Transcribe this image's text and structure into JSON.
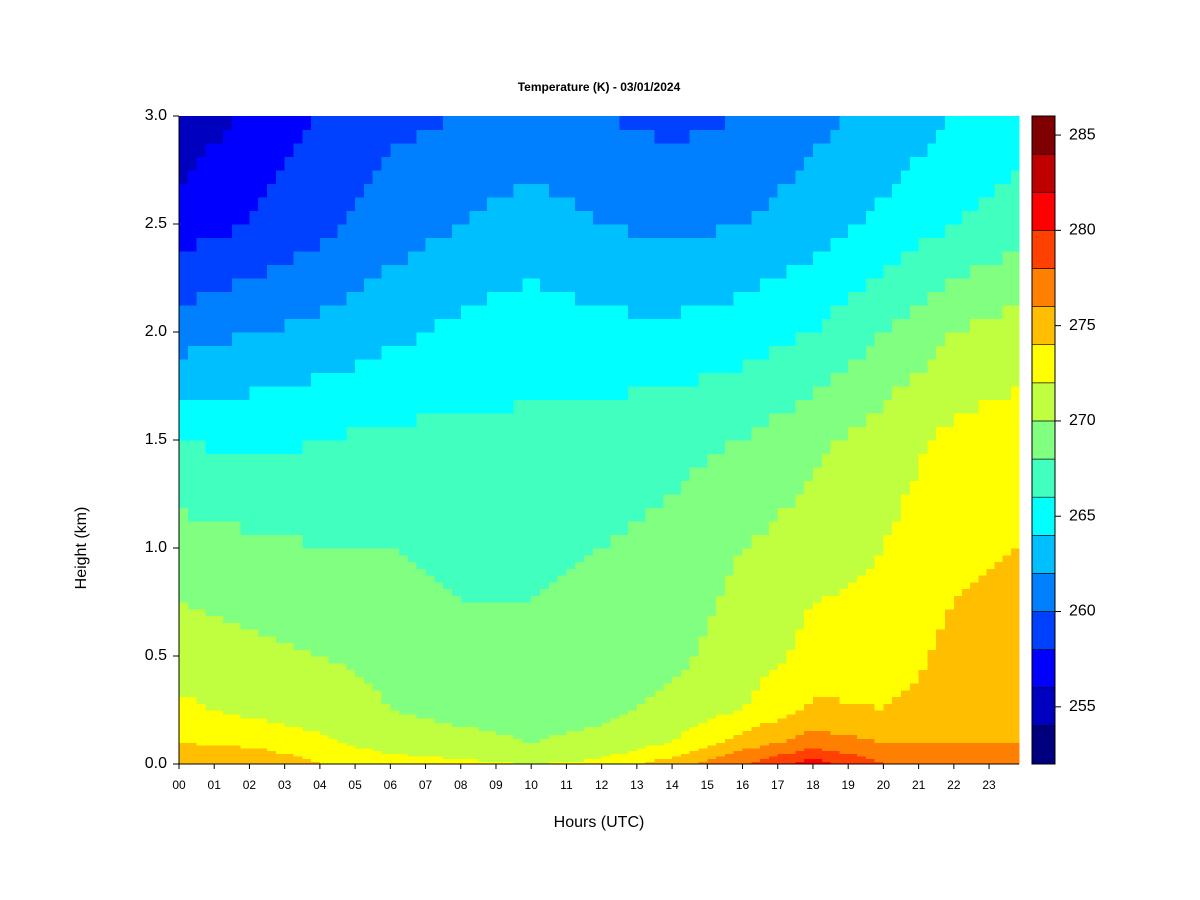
{
  "chart_data": {
    "type": "contour",
    "title": "Temperature (K) - 03/01/2024",
    "xlabel": "Hours (UTC)",
    "ylabel": "Height (km)",
    "x": [
      0,
      2,
      4,
      6,
      8,
      10,
      12,
      14,
      16,
      18,
      20,
      22,
      23.85
    ],
    "y": [
      0,
      0.1,
      0.25,
      0.5,
      0.75,
      1.0,
      1.5,
      2.0,
      2.5,
      3.0
    ],
    "z": [
      [
        276,
        276,
        274,
        273,
        272.5,
        272,
        272.5,
        275,
        278,
        281,
        278,
        277,
        277
      ],
      [
        274,
        273.5,
        272.5,
        271,
        270.5,
        270,
        270.5,
        272,
        275,
        277,
        276,
        276,
        276
      ],
      [
        272.5,
        271.5,
        271,
        270,
        269.5,
        269.5,
        269.5,
        270.5,
        272,
        274.5,
        274,
        275,
        275
      ],
      [
        271,
        270.5,
        270,
        269.5,
        269,
        269,
        269,
        269.5,
        271,
        272.5,
        273,
        274.5,
        275
      ],
      [
        270,
        269.5,
        269,
        268.5,
        268,
        268,
        268.5,
        269,
        270.5,
        272,
        272.5,
        274,
        274.5
      ],
      [
        269,
        268.5,
        268,
        268,
        267.5,
        267.5,
        268,
        268.5,
        270,
        271,
        272,
        273.5,
        274
      ],
      [
        266,
        265.5,
        266,
        266.5,
        266.5,
        266.5,
        267,
        267.5,
        268,
        269.5,
        271,
        272.5,
        273
      ],
      [
        261,
        262,
        262.5,
        263.5,
        264.5,
        265,
        264.5,
        264.5,
        265,
        266,
        268,
        270,
        271
      ],
      [
        257,
        258,
        259.5,
        261,
        262,
        263,
        262,
        261.5,
        262,
        263,
        264.5,
        266,
        267
      ],
      [
        254.5,
        256.5,
        258,
        259.5,
        260,
        260.5,
        260,
        259.5,
        260,
        261.5,
        262.5,
        264,
        265
      ]
    ],
    "levels": [
      252,
      254,
      256,
      258,
      260,
      262,
      264,
      266,
      268,
      270,
      272,
      274,
      276,
      278,
      280,
      282,
      284,
      286
    ],
    "colors": [
      "#00007f",
      "#0000bf",
      "#0000ff",
      "#0040ff",
      "#0080ff",
      "#00bfff",
      "#00ffff",
      "#40ffbf",
      "#80ff80",
      "#bfff40",
      "#ffff00",
      "#ffbf00",
      "#ff8000",
      "#ff4000",
      "#ff0000",
      "#bf0000",
      "#7f0000"
    ],
    "xlim": [
      0,
      23.85
    ],
    "ylim": [
      0,
      3
    ],
    "xticks": [
      {
        "value": 0,
        "label": "00"
      },
      {
        "value": 1,
        "label": "01"
      },
      {
        "value": 2,
        "label": "02"
      },
      {
        "value": 3,
        "label": "03"
      },
      {
        "value": 4,
        "label": "04"
      },
      {
        "value": 5,
        "label": "05"
      },
      {
        "value": 6,
        "label": "06"
      },
      {
        "value": 7,
        "label": "07"
      },
      {
        "value": 8,
        "label": "08"
      },
      {
        "value": 9,
        "label": "09"
      },
      10,
      11,
      12,
      13,
      14,
      15,
      16,
      17,
      18,
      19,
      20,
      21,
      22,
      23
    ],
    "yticks": [
      {
        "value": 0,
        "label": "0.0"
      },
      0.5,
      {
        "value": 1,
        "label": "1.0"
      },
      1.5,
      {
        "value": 2,
        "label": "2.0"
      },
      2.5,
      {
        "value": 3,
        "label": "3.0"
      }
    ],
    "colorbar": {
      "lim": [
        252,
        286
      ],
      "ticks": [
        255,
        260,
        265,
        270,
        275,
        280,
        285
      ]
    }
  }
}
